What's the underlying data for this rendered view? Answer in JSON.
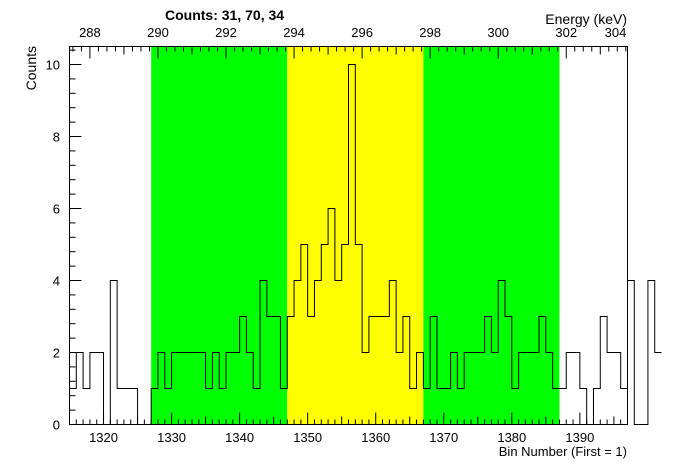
{
  "chart_data": {
    "type": "histogram",
    "title": "Counts:   31,   70,   34",
    "xlabel": "Bin Number (First = 1)",
    "ylabel": "Counts",
    "x2label": "Energy (keV)",
    "xlim": [
      1315,
      1397
    ],
    "ylim": [
      0,
      10.5
    ],
    "x_ticks_major": [
      1320,
      1330,
      1340,
      1350,
      1360,
      1370,
      1380,
      1390
    ],
    "y_ticks_major": [
      0,
      2,
      4,
      6,
      8,
      10
    ],
    "x2_ticks_major": [
      {
        "bin": 1318.0,
        "label": "288"
      },
      {
        "bin": 1328.0,
        "label": "290"
      },
      {
        "bin": 1338.0,
        "label": "292"
      },
      {
        "bin": 1348.0,
        "label": "294"
      },
      {
        "bin": 1358.0,
        "label": "296"
      },
      {
        "bin": 1368.0,
        "label": "298"
      },
      {
        "bin": 1378.0,
        "label": "300"
      },
      {
        "bin": 1388.0,
        "label": "302"
      },
      {
        "bin": 1398.0,
        "label": "304"
      }
    ],
    "regions": [
      {
        "x0": 1327,
        "x1": 1347,
        "color": "#00ff00"
      },
      {
        "x0": 1347,
        "x1": 1367,
        "color": "#ffff00"
      },
      {
        "x0": 1367,
        "x1": 1387,
        "color": "#00ff00"
      }
    ],
    "bin_start": 1315,
    "bin_width": 1,
    "counts": [
      1,
      2,
      1,
      2,
      2,
      0,
      4,
      1,
      1,
      1,
      0,
      0,
      1,
      2,
      1,
      2,
      2,
      2,
      2,
      2,
      1,
      2,
      1,
      2,
      2,
      3,
      2,
      1,
      4,
      3,
      3,
      1,
      3,
      4,
      5,
      3,
      4,
      5,
      6,
      4,
      5,
      10,
      5,
      2,
      3,
      3,
      3,
      4,
      2,
      3,
      1,
      2,
      1,
      3,
      1,
      1,
      2,
      1,
      2,
      2,
      2,
      3,
      2,
      4,
      3,
      1,
      2,
      2,
      2,
      3,
      2,
      1,
      1,
      2,
      2,
      1,
      0,
      1,
      3,
      2,
      2,
      1,
      4,
      0,
      0,
      4,
      2
    ],
    "colors": {
      "green": "#00ff00",
      "yellow": "#ffff00",
      "line": "#000000"
    }
  }
}
